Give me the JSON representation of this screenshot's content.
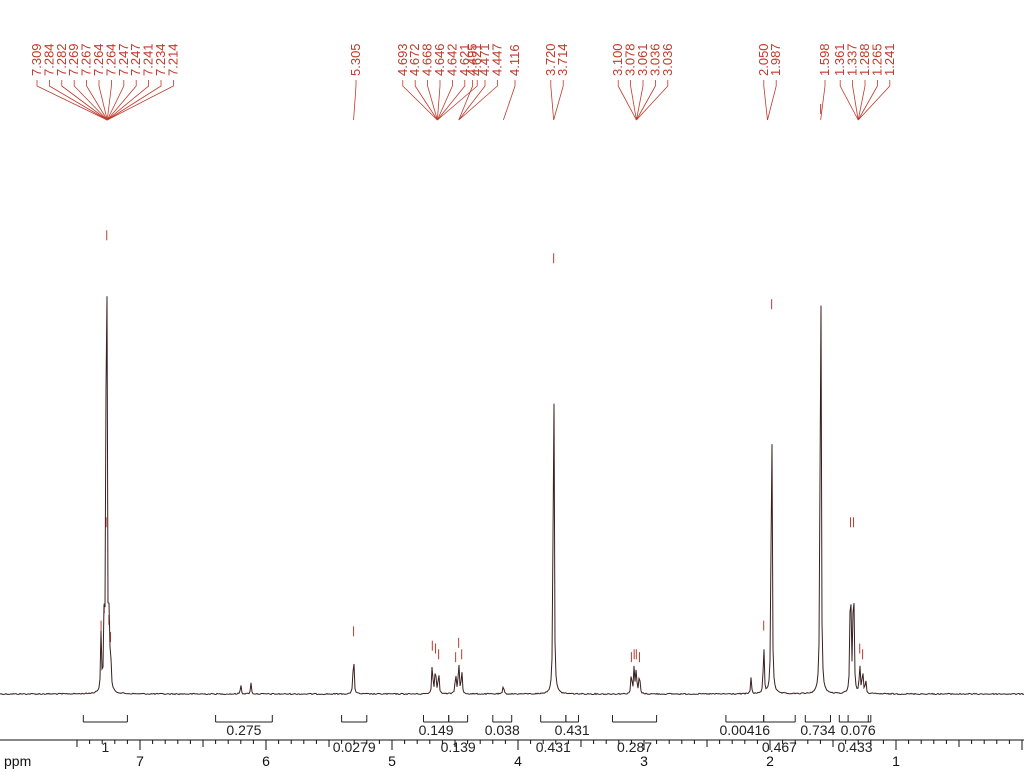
{
  "chart_data": {
    "type": "line",
    "subtype": "1H-NMR spectrum",
    "xlabel": "ppm",
    "x_reversed": true,
    "xlim": [
      7.75,
      0.0
    ],
    "ylim": [
      0,
      1.0
    ],
    "x_ticks": [
      {
        "value": 7,
        "label": "7"
      },
      {
        "value": 6,
        "label": "6"
      },
      {
        "value": 5,
        "label": "5"
      },
      {
        "value": 4,
        "label": "4"
      },
      {
        "value": 3,
        "label": "3"
      },
      {
        "value": 2,
        "label": "2"
      },
      {
        "value": 1,
        "label": "1"
      }
    ],
    "colors": {
      "peak_labels": "#c0392b",
      "spectrum": "#3a1f1f",
      "integrals": "#222222"
    },
    "peak_label_groups": [
      {
        "labels": [
          "7.309",
          "7.284",
          "7.282",
          "7.269",
          "7.267",
          "7.264",
          "7.264",
          "7.247",
          "7.247",
          "7.241",
          "7.234",
          "7.214"
        ],
        "target": 7.26
      },
      {
        "labels": [
          "5.305"
        ],
        "target": 5.305
      },
      {
        "labels": [
          "4.693",
          "4.672",
          "4.668",
          "4.646",
          "4.642",
          "4.621",
          "4.621"
        ],
        "target": 4.64
      },
      {
        "labels": [
          "4.495",
          "4.471",
          "4.447"
        ],
        "target": 4.47
      },
      {
        "labels": [
          "4.116"
        ],
        "target": 4.116
      },
      {
        "labels": [
          "3.720",
          "3.714"
        ],
        "target": 3.717
      },
      {
        "labels": [
          "3.100",
          "3.078",
          "3.061",
          "3.036",
          "3.036"
        ],
        "target": 3.06
      },
      {
        "labels": [
          "2.050",
          "1.987"
        ],
        "target": 2.02
      },
      {
        "labels": [
          "1.598"
        ],
        "target": 1.598
      },
      {
        "labels": [
          "1.361",
          "1.337",
          "1.288",
          "1.265",
          "1.241"
        ],
        "target": 1.3
      }
    ],
    "peaks": [
      {
        "ppm": 7.309,
        "h": 0.1
      },
      {
        "ppm": 7.284,
        "h": 0.13
      },
      {
        "ppm": 7.269,
        "h": 0.28
      },
      {
        "ppm": 7.264,
        "h": 0.78
      },
      {
        "ppm": 7.247,
        "h": 0.11
      },
      {
        "ppm": 7.234,
        "h": 0.08
      },
      {
        "ppm": 6.2,
        "h": 0.018
      },
      {
        "ppm": 6.12,
        "h": 0.02
      },
      {
        "ppm": 5.305,
        "h": 0.09
      },
      {
        "ppm": 4.68,
        "h": 0.065
      },
      {
        "ppm": 4.655,
        "h": 0.06
      },
      {
        "ppm": 4.63,
        "h": 0.05
      },
      {
        "ppm": 4.495,
        "h": 0.045
      },
      {
        "ppm": 4.471,
        "h": 0.07
      },
      {
        "ppm": 4.447,
        "h": 0.05
      },
      {
        "ppm": 4.116,
        "h": 0.018
      },
      {
        "ppm": 3.717,
        "h": 0.74
      },
      {
        "ppm": 3.1,
        "h": 0.045
      },
      {
        "ppm": 3.078,
        "h": 0.05
      },
      {
        "ppm": 3.061,
        "h": 0.05
      },
      {
        "ppm": 3.036,
        "h": 0.045
      },
      {
        "ppm": 2.15,
        "h": 0.03
      },
      {
        "ppm": 2.05,
        "h": 0.1
      },
      {
        "ppm": 1.987,
        "h": 0.66
      },
      {
        "ppm": 1.598,
        "h": 1.0
      },
      {
        "ppm": 1.361,
        "h": 0.28
      },
      {
        "ppm": 1.337,
        "h": 0.28
      },
      {
        "ppm": 1.288,
        "h": 0.06
      },
      {
        "ppm": 1.265,
        "h": 0.05
      },
      {
        "ppm": 1.241,
        "h": 0.03
      }
    ],
    "integrals": [
      {
        "from": 7.45,
        "to": 7.1,
        "value": "1",
        "label_pos": "below"
      },
      {
        "from": 6.4,
        "to": 5.95,
        "value": "0.275",
        "label_pos": "above"
      },
      {
        "from": 5.4,
        "to": 5.2,
        "value": "0.0279",
        "label_pos": "below"
      },
      {
        "from": 4.75,
        "to": 4.55,
        "value": "0.149",
        "label_pos": "above"
      },
      {
        "from": 4.55,
        "to": 4.4,
        "value": "0.139",
        "label_pos": "below"
      },
      {
        "from": 4.2,
        "to": 4.05,
        "value": "0.038",
        "label_pos": "above"
      },
      {
        "from": 3.82,
        "to": 3.62,
        "value": "0.431",
        "label_pos": "below"
      },
      {
        "from": 3.62,
        "to": 3.52,
        "value": "0.431",
        "label_pos": "above"
      },
      {
        "from": 3.25,
        "to": 2.9,
        "value": "0.287",
        "label_pos": "below"
      },
      {
        "from": 2.35,
        "to": 2.05,
        "value": "0.00416",
        "label_pos": "above"
      },
      {
        "from": 2.05,
        "to": 1.8,
        "value": "0.467",
        "label_pos": "below"
      },
      {
        "from": 1.72,
        "to": 1.52,
        "value": "0.734",
        "label_pos": "above"
      },
      {
        "from": 1.45,
        "to": 1.2,
        "value": "0.433",
        "label_pos": "below"
      },
      {
        "from": 1.38,
        "to": 1.22,
        "value": "0.076",
        "label_pos": "above"
      }
    ]
  }
}
